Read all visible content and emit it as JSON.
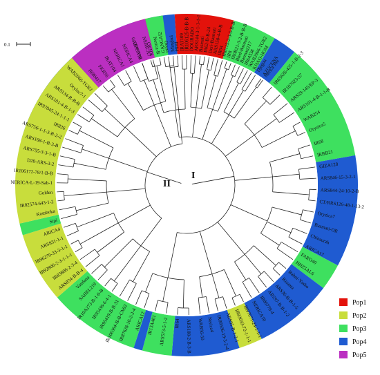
{
  "scale_bar": {
    "label": "0.1"
  },
  "clades": {
    "one": "I",
    "two": "II"
  },
  "legend": [
    {
      "name": "Pop1",
      "color": "#e3120b"
    },
    {
      "name": "Pop2",
      "color": "#c8dd3c"
    },
    {
      "name": "Pop3",
      "color": "#3ee05f"
    },
    {
      "name": "Pop4",
      "color": "#1f5bd1"
    },
    {
      "name": "Pop5",
      "color": "#bb2fc1"
    }
  ],
  "sectors": [
    {
      "pop": "Pop4",
      "start": -75,
      "end": -18
    },
    {
      "pop": "Pop1",
      "start": -18,
      "end": -13
    },
    {
      "pop": "Pop4",
      "start": -13,
      "end": -4
    },
    {
      "pop": "Pop1",
      "start": -4,
      "end": 16
    },
    {
      "pop": "Pop3",
      "start": 16,
      "end": 31
    },
    {
      "pop": "Pop4",
      "start": 31,
      "end": 39
    },
    {
      "pop": "Pop3",
      "start": 39,
      "end": 80
    },
    {
      "pop": "Pop4",
      "start": 80,
      "end": 118
    },
    {
      "pop": "Pop3",
      "start": 118,
      "end": 127
    },
    {
      "pop": "Pop4",
      "start": 127,
      "end": 154
    },
    {
      "pop": "Pop2",
      "start": 154,
      "end": 162
    },
    {
      "pop": "Pop4",
      "start": 162,
      "end": 185
    },
    {
      "pop": "Pop3",
      "start": 185,
      "end": 195
    },
    {
      "pop": "Pop4",
      "start": 195,
      "end": 198
    },
    {
      "pop": "Pop3",
      "start": 198,
      "end": 229
    },
    {
      "pop": "Pop2",
      "start": 229,
      "end": 253
    },
    {
      "pop": "Pop3",
      "start": 253,
      "end": 257
    },
    {
      "pop": "Pop2",
      "start": 257,
      "end": 318
    },
    {
      "pop": "Pop5",
      "start": 318,
      "end": 346
    },
    {
      "pop": "Pop3",
      "start": 346,
      "end": 352
    }
  ],
  "leaves": [
    {
      "name": "Basmati370",
      "angle": -20
    },
    {
      "name": "KHAO",
      "angle": -15
    },
    {
      "name": "GANGAI2",
      "angle": -10
    },
    {
      "name": "Minghui",
      "angle": -6
    },
    {
      "name": "IRAT109",
      "angle": -2
    },
    {
      "name": "DOURADO",
      "angle": 2
    },
    {
      "name": "Basmati",
      "angle": 6
    },
    {
      "name": "Deri-Basmati",
      "angle": 10
    },
    {
      "name": "IR64",
      "angle": 14
    },
    {
      "name": "IR8",
      "angle": 18
    },
    {
      "name": "Bled-Basmati",
      "angle": 22
    },
    {
      "name": "IR64338",
      "angle": 26
    },
    {
      "name": "KHAO-HOM",
      "angle": 30
    },
    {
      "name": "AZUCENA",
      "angle": 35
    },
    {
      "name": "IR65628-425-1-B-2-3",
      "angle": 41
    },
    {
      "name": "IR107023-57",
      "angle": 46
    },
    {
      "name": "ARS39-145/EP-3",
      "angle": 51
    },
    {
      "name": "ARS101-4-B-1-1-B",
      "angle": 56
    },
    {
      "name": "WAB254",
      "angle": 61
    },
    {
      "name": "Oryzica5",
      "angle": 66
    },
    {
      "name": "IR68",
      "angle": 72
    },
    {
      "name": "IRBB21",
      "angle": 77
    },
    {
      "name": "GIZA128",
      "angle": 82
    },
    {
      "name": "ARS846-15-3-2-1",
      "angle": 87
    },
    {
      "name": "ARS844-24-10-2-B",
      "angle": 92
    },
    {
      "name": "CT/RRS126-48-1-13-2",
      "angle": 97
    },
    {
      "name": "Oryzica7",
      "angle": 102
    },
    {
      "name": "Basmati-OR",
      "angle": 107
    },
    {
      "name": "Chinsurah",
      "angle": 112
    },
    {
      "name": "ARICA17",
      "angle": 117
    },
    {
      "name": "FARO40",
      "angle": 121
    },
    {
      "name": "HHZ5AL6",
      "angle": 125
    },
    {
      "name": "Bahni-Yasho",
      "angle": 130
    },
    {
      "name": "Kisanta",
      "angle": 134
    },
    {
      "name": "ARS36-B-B-1-5",
      "angle": 138
    },
    {
      "name": "ARS97-B-B-1-2",
      "angle": 142
    },
    {
      "name": "IR80779-4",
      "angle": 146
    },
    {
      "name": "NERICA10",
      "angle": 150
    },
    {
      "name": "IR97071-24-1-1-1",
      "angle": 154
    },
    {
      "name": "IR93033-72-1-1-1",
      "angle": 158
    },
    {
      "name": "ARS95-B-1-2-1",
      "angle": 162
    },
    {
      "name": "IR09506-19-3-2-4",
      "angle": 166
    },
    {
      "name": "Nerica4",
      "angle": 170
    },
    {
      "name": "WAB56-50",
      "angle": 174
    },
    {
      "name": "ARS108-2-B-3-B",
      "angle": 179
    },
    {
      "name": "IR64",
      "angle": 184
    },
    {
      "name": "ARS573-5-1-2",
      "angle": 189
    },
    {
      "name": "IR13A461",
      "angle": 194
    },
    {
      "name": "ARICA12",
      "angle": 199
    },
    {
      "name": "IR87628-10-2-2-4",
      "angle": 203
    },
    {
      "name": "IR106364-B-B-CN92",
      "angle": 207
    },
    {
      "name": "IR95419-B-B-31",
      "angle": 211
    },
    {
      "name": "IR95436-6-4-1",
      "angle": 215
    },
    {
      "name": "IR10A273-B-1-0-B",
      "angle": 219
    },
    {
      "name": "SAHEL210",
      "angle": 223
    },
    {
      "name": "Vandana",
      "angle": 227
    },
    {
      "name": "ARS834-B-B-4",
      "angle": 231
    },
    {
      "name": "IR83806-2-3-4",
      "angle": 235
    },
    {
      "name": "IR92806-2-3-1-1-1",
      "angle": 239
    },
    {
      "name": "IR96279-33-3-1-1",
      "angle": 243
    },
    {
      "name": "ARS831-1-1",
      "angle": 247
    },
    {
      "name": "ARICA4",
      "angle": 251
    },
    {
      "name": "Sipi",
      "angle": 255
    },
    {
      "name": "Komboka",
      "angle": 259
    },
    {
      "name": "IR82574-643-1-2",
      "angle": 263
    },
    {
      "name": "Golden",
      "angle": 267
    },
    {
      "name": "NERICA-L-19-Sab-1",
      "angle": 271
    },
    {
      "name": "IR106172-78/1-B-B",
      "angle": 275
    },
    {
      "name": "D20-ARS-3-2",
      "angle": 279
    },
    {
      "name": "ARS755-3-3-1-B",
      "angle": 283
    },
    {
      "name": "ARS168-1-B-3-B",
      "angle": 287
    },
    {
      "name": "ARS756-1-1-3-B-2-2",
      "angle": 291
    },
    {
      "name": "IR836",
      "angle": 295
    },
    {
      "name": "IR97045-24-1-1-1",
      "angle": 299
    },
    {
      "name": "ARS101-4-B-1-3",
      "angle": 303
    },
    {
      "name": "ARS134-B-B-B",
      "angle": 307
    },
    {
      "name": "Oryluc7-1",
      "angle": 311
    },
    {
      "name": "WAB2066-TGR3",
      "angle": 315
    },
    {
      "name": "IR80417",
      "angle": 320
    },
    {
      "name": "FKR56",
      "angle": 324
    },
    {
      "name": "IRAT104",
      "angle": 328
    },
    {
      "name": "NERICA1",
      "angle": 332
    },
    {
      "name": "NERICA4",
      "angle": 336
    },
    {
      "name": "ARICA16",
      "angle": 340
    },
    {
      "name": "NERICA7",
      "angle": 344
    },
    {
      "name": "Nerica-B",
      "angle": 348
    },
    {
      "name": "Oryza",
      "angle": 352
    },
    {
      "name": "IR84",
      "angle": 356
    },
    {
      "name": "IR106125-B-B-B",
      "angle": 360
    },
    {
      "name": "ARS144-3-1-1-1-1",
      "angle": 364
    },
    {
      "name": "IR62-B-B-24",
      "angle": 368
    },
    {
      "name": "ARS150-4-B-B",
      "angle": 372
    },
    {
      "name": "IR0115-2-3-5-B-B",
      "angle": 376
    },
    {
      "name": "IR0B21-3-2-B-B-B",
      "angle": 380
    },
    {
      "name": "Basmati217",
      "angle": 384
    },
    {
      "name": "WAB2066-TGR2",
      "angle": 388
    },
    {
      "name": "Djegou",
      "angle": 392
    },
    {
      "name": "Nerica-Ihu",
      "angle": 396
    }
  ]
}
